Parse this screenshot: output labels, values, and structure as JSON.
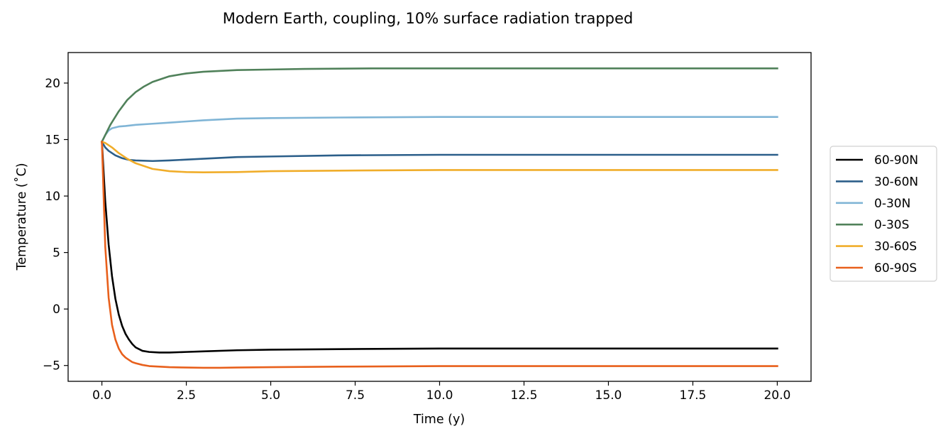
{
  "chart_data": {
    "type": "line",
    "title": "Modern Earth, coupling, 10% surface radiation trapped",
    "xlabel": "Time (y)",
    "ylabel": "Temperature (˚C)",
    "xlim": [
      -1,
      21
    ],
    "ylim": [
      -6.4,
      22.7
    ],
    "xticks": [
      0.0,
      2.5,
      5.0,
      7.5,
      10.0,
      12.5,
      15.0,
      17.5,
      20.0
    ],
    "xtick_labels": [
      "0.0",
      "2.5",
      "5.0",
      "7.5",
      "10.0",
      "12.5",
      "15.0",
      "17.5",
      "20.0"
    ],
    "yticks": [
      -5,
      0,
      5,
      10,
      15,
      20
    ],
    "ytick_labels": [
      "−5",
      "0",
      "5",
      "10",
      "15",
      "20"
    ],
    "grid": false,
    "legend_position": "outside-right",
    "series": [
      {
        "name": "60-90N",
        "color": "#000000",
        "x": [
          0,
          0.1,
          0.2,
          0.3,
          0.4,
          0.5,
          0.6,
          0.7,
          0.8,
          0.9,
          1.0,
          1.2,
          1.4,
          1.7,
          2.0,
          2.5,
          3,
          4,
          5,
          7,
          10,
          15,
          20
        ],
        "y": [
          14.8,
          9.5,
          5.7,
          2.9,
          0.9,
          -0.5,
          -1.5,
          -2.2,
          -2.7,
          -3.1,
          -3.4,
          -3.7,
          -3.8,
          -3.85,
          -3.85,
          -3.8,
          -3.75,
          -3.65,
          -3.6,
          -3.55,
          -3.5,
          -3.5,
          -3.5
        ]
      },
      {
        "name": "30-60N",
        "color": "#2c5f8a",
        "x": [
          0,
          0.1,
          0.2,
          0.4,
          0.6,
          0.8,
          1.0,
          1.5,
          2.0,
          3,
          4,
          5,
          7,
          10,
          15,
          20
        ],
        "y": [
          14.8,
          14.3,
          14.0,
          13.6,
          13.35,
          13.2,
          13.15,
          13.1,
          13.15,
          13.3,
          13.45,
          13.5,
          13.6,
          13.65,
          13.65,
          13.65
        ]
      },
      {
        "name": "0-30N",
        "color": "#80b5d6",
        "x": [
          0,
          0.1,
          0.2,
          0.3,
          0.5,
          0.7,
          1.0,
          1.5,
          2,
          3,
          4,
          5,
          7,
          10,
          15,
          20
        ],
        "y": [
          14.8,
          15.4,
          15.8,
          16.0,
          16.15,
          16.2,
          16.3,
          16.4,
          16.5,
          16.7,
          16.85,
          16.9,
          16.95,
          17.0,
          17.0,
          17.0
        ]
      },
      {
        "name": "0-30S",
        "color": "#50815a",
        "x": [
          0,
          0.25,
          0.5,
          0.75,
          1.0,
          1.25,
          1.5,
          2.0,
          2.5,
          3,
          4,
          5,
          6,
          8,
          10,
          15,
          20
        ],
        "y": [
          14.8,
          16.3,
          17.5,
          18.5,
          19.2,
          19.7,
          20.1,
          20.6,
          20.85,
          21.0,
          21.15,
          21.2,
          21.25,
          21.3,
          21.3,
          21.3,
          21.3
        ]
      },
      {
        "name": "30-60S",
        "color": "#f0ad2a",
        "x": [
          0,
          0.1,
          0.3,
          0.5,
          0.75,
          1.0,
          1.5,
          2.0,
          2.5,
          3.0,
          4,
          5,
          7,
          10,
          15,
          20
        ],
        "y": [
          14.8,
          14.7,
          14.3,
          13.8,
          13.3,
          12.9,
          12.4,
          12.2,
          12.12,
          12.1,
          12.12,
          12.2,
          12.25,
          12.3,
          12.3,
          12.3
        ]
      },
      {
        "name": "60-90S",
        "color": "#e8601c",
        "x": [
          0,
          0.1,
          0.2,
          0.3,
          0.4,
          0.5,
          0.6,
          0.7,
          0.8,
          0.9,
          1.0,
          1.2,
          1.4,
          1.7,
          2.0,
          2.5,
          3.0,
          3.5,
          4,
          5,
          7,
          10,
          15,
          20
        ],
        "y": [
          14.8,
          5.5,
          1.0,
          -1.4,
          -2.7,
          -3.5,
          -4.0,
          -4.3,
          -4.5,
          -4.7,
          -4.8,
          -4.95,
          -5.05,
          -5.1,
          -5.15,
          -5.18,
          -5.2,
          -5.2,
          -5.18,
          -5.15,
          -5.1,
          -5.05,
          -5.05,
          -5.05
        ]
      }
    ]
  }
}
